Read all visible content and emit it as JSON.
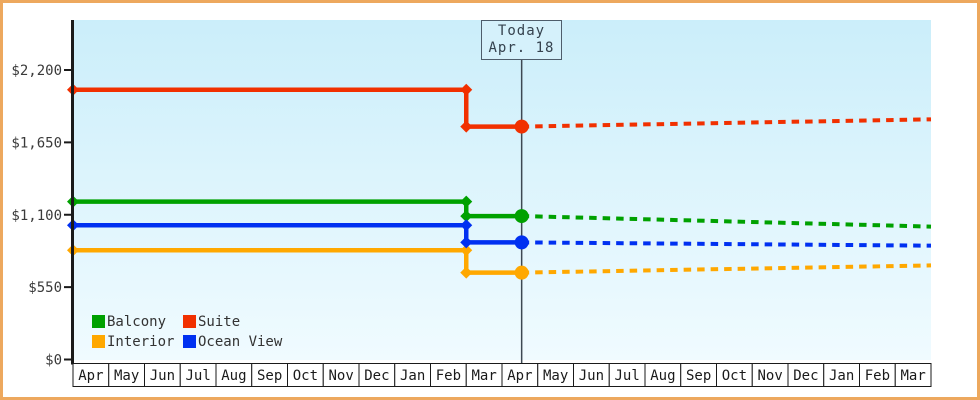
{
  "window": {
    "background": "#ffffff",
    "border_color": "#eda85e"
  },
  "chart_data": {
    "type": "line",
    "description": "Cruise cabin price history (solid) and forecast after today (dotted)",
    "grid": "off",
    "legend_position": "bottom-left-inside",
    "plot_bg_gradient": [
      "#cbeefa",
      "#f0fbff"
    ],
    "axis_color": "#1a1a1a",
    "label_color": "#3a3a3a",
    "ylim": [
      0,
      2580
    ],
    "y_axis": {
      "tick_labels": [
        "$0",
        "$550",
        "$1,100",
        "$1,650",
        "$2,200"
      ],
      "tick_values": [
        0,
        550,
        1100,
        1650,
        2200
      ]
    },
    "x_axis": {
      "months": [
        "Apr",
        "May",
        "Jun",
        "Jul",
        "Aug",
        "Sep",
        "Oct",
        "Nov",
        "Dec",
        "Jan",
        "Feb",
        "Mar",
        "Apr",
        "May",
        "Jun",
        "Jul",
        "Aug",
        "Sep",
        "Oct",
        "Nov",
        "Dec",
        "Jan",
        "Feb",
        "Mar"
      ]
    },
    "today_marker": {
      "line1": "Today",
      "line2": "Apr. 18",
      "month_position": 12.55,
      "line_color": "#3d4852"
    },
    "series": [
      {
        "name": "Balcony",
        "color": "#00a100",
        "solid_points": [
          [
            0,
            1200
          ],
          [
            11,
            1200
          ],
          [
            11,
            1090
          ],
          [
            12.55,
            1090
          ]
        ],
        "dotted_points": [
          [
            12.55,
            1090
          ],
          [
            24,
            1010
          ]
        ]
      },
      {
        "name": "Suite",
        "color": "#f13000",
        "solid_points": [
          [
            0,
            2050
          ],
          [
            11,
            2050
          ],
          [
            11,
            1770
          ],
          [
            12.55,
            1770
          ]
        ],
        "dotted_points": [
          [
            12.55,
            1770
          ],
          [
            24,
            1825
          ]
        ]
      },
      {
        "name": "Interior",
        "color": "#ffa800",
        "solid_points": [
          [
            0,
            830
          ],
          [
            11,
            830
          ],
          [
            11,
            660
          ],
          [
            12.55,
            660
          ]
        ],
        "dotted_points": [
          [
            12.55,
            660
          ],
          [
            24,
            715
          ]
        ]
      },
      {
        "name": "Ocean View",
        "color": "#0030f1",
        "solid_points": [
          [
            0,
            1020
          ],
          [
            11,
            1020
          ],
          [
            11,
            890
          ],
          [
            12.55,
            890
          ]
        ],
        "dotted_points": [
          [
            12.55,
            890
          ],
          [
            24,
            865
          ]
        ]
      }
    ],
    "legend": {
      "rows": [
        [
          "Balcony",
          "Suite"
        ],
        [
          "Interior",
          "Ocean View"
        ]
      ]
    }
  }
}
